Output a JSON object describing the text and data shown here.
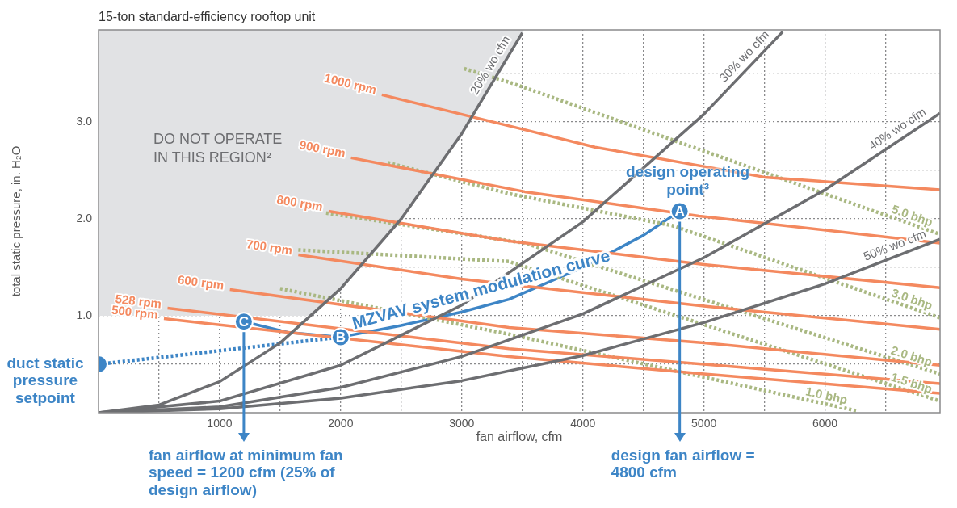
{
  "chart_data": {
    "type": "line",
    "title": "15-ton standard-efficiency rooftop unit",
    "xlabel": "fan airflow, cfm",
    "ylabel": "total static pressure, in. H₂O",
    "xlim": [
      0,
      6950
    ],
    "ylim": [
      0,
      3.95
    ],
    "xticks": [
      {
        "value": 500,
        "label": null
      },
      1000,
      {
        "value": 1500,
        "label": null
      },
      2000,
      {
        "value": 2500,
        "label": null
      },
      3000,
      {
        "value": 3500,
        "label": null
      },
      4000,
      {
        "value": 4500,
        "label": null
      },
      5000,
      {
        "value": 5500,
        "label": null
      },
      6000,
      {
        "value": 6500,
        "label": null
      }
    ],
    "yticks": [
      {
        "value": 0.5,
        "label": null
      },
      {
        "value": 1,
        "label": "1.0"
      },
      {
        "value": 1.5,
        "label": null
      },
      {
        "value": 2,
        "label": "2.0"
      },
      {
        "value": 2.5,
        "label": null
      },
      {
        "value": 3,
        "label": "3.0"
      },
      {
        "value": 3.5,
        "label": null
      }
    ],
    "grid": true,
    "legend": false,
    "series": [
      {
        "type": "area",
        "color": "#e1e2e4",
        "x": [
          0,
          0,
          1770,
          2000,
          2500,
          3000,
          3513
        ],
        "values": [
          3.95,
          1,
          1,
          1.28,
          2,
          2.88,
          3.95
        ]
      },
      {
        "name": "20% wo cfm",
        "color": "#6d6e71",
        "x": [
          0,
          500,
          1000,
          1500,
          2000,
          2500,
          3000,
          3500
        ],
        "values": [
          0,
          0.08,
          0.32,
          0.72,
          1.28,
          2,
          2.88,
          3.92
        ]
      },
      {
        "name": "30% wo cfm",
        "color": "#6d6e71",
        "x": [
          0,
          1000,
          2000,
          3000,
          4000,
          5000,
          5650
        ],
        "values": [
          0,
          0.12,
          0.49,
          1.11,
          1.97,
          3.08,
          3.93
        ]
      },
      {
        "name": "40% wo cfm",
        "color": "#6d6e71",
        "x": [
          0,
          1000,
          2000,
          3000,
          4000,
          5000,
          6000,
          6950
        ],
        "values": [
          0,
          0.06,
          0.26,
          0.58,
          1.02,
          1.6,
          2.3,
          3.09
        ]
      },
      {
        "name": "50% wo cfm",
        "color": "#6d6e71",
        "x": [
          0,
          1000,
          2000,
          3000,
          4000,
          5000,
          6000,
          6950
        ],
        "values": [
          0,
          0.04,
          0.15,
          0.33,
          0.59,
          0.93,
          1.33,
          1.79
        ]
      },
      {
        "name": "1000 rpm",
        "color": "#f4895f",
        "x": [
          2340,
          3520,
          4100,
          5500,
          6950
        ],
        "values": [
          3.28,
          2.92,
          2.74,
          2.43,
          2.3
        ]
      },
      {
        "name": "900 rpm",
        "color": "#f4895f",
        "x": [
          2085,
          3520,
          4960,
          6950
        ],
        "values": [
          2.63,
          2.28,
          2.03,
          1.75
        ]
      },
      {
        "name": "800 rpm",
        "color": "#f4895f",
        "x": [
          1900,
          3390,
          5000,
          6950
        ],
        "values": [
          2.08,
          1.77,
          1.53,
          1.29
        ]
      },
      {
        "name": "700 rpm",
        "color": "#f4895f",
        "x": [
          1650,
          3000,
          5000,
          6950
        ],
        "values": [
          1.63,
          1.38,
          1.1,
          0.86
        ]
      },
      {
        "name": "600 rpm",
        "color": "#f4895f",
        "x": [
          1085,
          3390,
          5000,
          6950
        ],
        "values": [
          1.27,
          0.88,
          0.72,
          0.49
        ]
      },
      {
        "name": "528 rpm",
        "color": "#f4895f",
        "x": [
          570,
          3390,
          5000,
          6950
        ],
        "values": [
          1.08,
          0.66,
          0.5,
          0.3
        ]
      },
      {
        "name": "500 rpm",
        "color": "#f4895f",
        "x": [
          540,
          3390,
          5000,
          6950
        ],
        "values": [
          0.97,
          0.58,
          0.4,
          0.2
        ]
      },
      {
        "name": "5.0 bhp",
        "color": "#a9b882",
        "line_style": "dotted",
        "x": [
          3020,
          3390,
          6950
        ],
        "values": [
          3.55,
          3.41,
          1.84
        ]
      },
      {
        "name": "3.0 bhp",
        "color": "#a9b882",
        "line_style": "dotted",
        "x": [
          2390,
          3390,
          4740,
          6950
        ],
        "values": [
          2.58,
          2.26,
          1.93,
          0.98
        ]
      },
      {
        "name": "2.0 bhp",
        "color": "#a9b882",
        "line_style": "dotted",
        "x": [
          1880,
          3520,
          6950
        ],
        "values": [
          2.06,
          1.75,
          0.4
        ]
      },
      {
        "name": "1.5 bhp",
        "color": "#a9b882",
        "line_style": "dotted",
        "x": [
          1650,
          3390,
          6950
        ],
        "values": [
          1.68,
          1.56,
          0.12
        ]
      },
      {
        "name": "1.0 bhp",
        "color": "#a9b882",
        "line_style": "dotted",
        "x": [
          1500,
          3390,
          6260
        ],
        "values": [
          1.28,
          0.81,
          0.02
        ]
      },
      {
        "name": "MZVAV system modulation curve",
        "color": "#3d85c6",
        "x": [
          1200,
          1560,
          2000,
          2500,
          3000,
          3390,
          4000,
          4500,
          4800
        ],
        "values": [
          0.94,
          0.83,
          0.78,
          0.9,
          1.04,
          1.17,
          1.5,
          1.83,
          2.08
        ]
      },
      {
        "color": "#3d85c6",
        "line_style": "dotted",
        "x": [
          0,
          2000
        ],
        "values": [
          0.5,
          0.78
        ]
      },
      {
        "type": "scatter",
        "color": "#3d85c6",
        "marker": "circle",
        "x": [
          0
        ],
        "values": [
          0.5
        ]
      },
      {
        "type": "scatter",
        "color": "#3d85c6",
        "marker": "circle",
        "x": [
          1200,
          2000,
          4800
        ],
        "values": [
          0.94,
          0.78,
          2.08
        ],
        "value_labels": [
          "C",
          "B",
          "A"
        ]
      }
    ],
    "ref_lines": [
      {
        "axis": "x",
        "value": 1200,
        "label": "fan airflow at minimum fan speed = 1200 cfm (25% of design airflow)",
        "color": "#3d85c6"
      },
      {
        "axis": "x",
        "value": 4800,
        "label": "design fan airflow = 4800 cfm",
        "color": "#3d85c6"
      }
    ],
    "annotations": [
      "DO NOT OPERATE IN THIS REGION²",
      {
        "text": "design operating point³",
        "x": 4800,
        "y": 2.08
      },
      {
        "text": "duct static pressure setpoint",
        "x": 0,
        "y": 0.5
      }
    ]
  }
}
